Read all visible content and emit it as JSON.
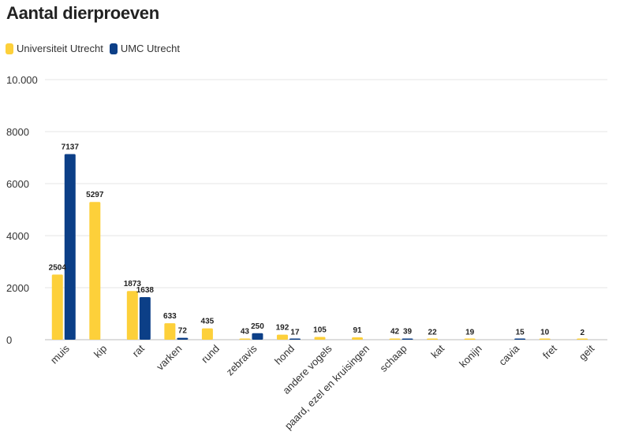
{
  "title": "Aantal dierproeven",
  "legend": {
    "items": [
      {
        "label": "Universiteit Utrecht",
        "color": "#fdd03a"
      },
      {
        "label": "UMC Utrecht",
        "color": "#0c3f87"
      }
    ]
  },
  "chart_data": {
    "type": "bar",
    "title": "Aantal dierproeven",
    "xlabel": "",
    "ylabel": "",
    "ylim": [
      0,
      10000
    ],
    "yticks": [
      0,
      2000,
      4000,
      6000,
      8000,
      10000
    ],
    "ytick_labels": [
      "0",
      "2000",
      "4000",
      "6000",
      "8000",
      "10.000"
    ],
    "grid": true,
    "legend_position": "top-left",
    "categories": [
      "muis",
      "kip",
      "rat",
      "varken",
      "rund",
      "zebravis",
      "hond",
      "andere vogels",
      "paard, ezel en kruisingen",
      "schaap",
      "kat",
      "konijn",
      "cavia",
      "fret",
      "geit"
    ],
    "series": [
      {
        "name": "Universiteit Utrecht",
        "color": "#fdd03a",
        "values": [
          2504,
          5297,
          1873,
          633,
          435,
          43,
          192,
          105,
          91,
          42,
          22,
          19,
          null,
          10,
          2
        ]
      },
      {
        "name": "UMC Utrecht",
        "color": "#0c3f87",
        "values": [
          7137,
          null,
          1638,
          72,
          null,
          250,
          17,
          null,
          null,
          39,
          null,
          null,
          15,
          null,
          null
        ]
      }
    ]
  }
}
